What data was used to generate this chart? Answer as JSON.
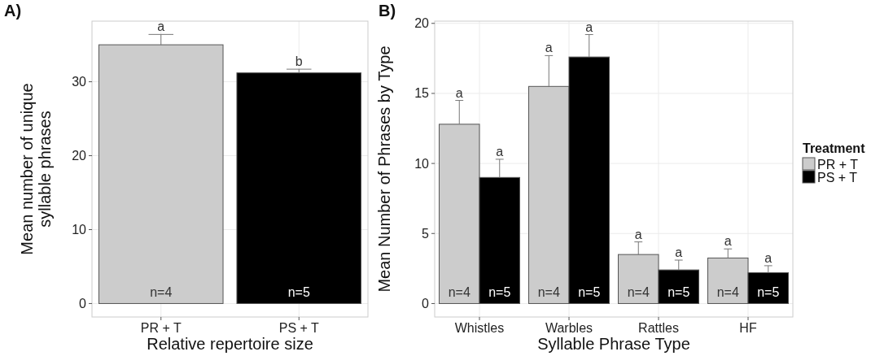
{
  "chart_data": [
    {
      "type": "bar",
      "title": "A)",
      "xlabel": "Relative repertoire size",
      "ylabel": "Mean number of unique\nsyllable phrases",
      "categories": [
        "PR + T",
        "PS + T"
      ],
      "values": [
        35,
        31.2
      ],
      "colors": [
        "#cccccc",
        "#000000"
      ],
      "errors": [
        [
          35,
          36.4
        ],
        [
          31.2,
          31.7
        ]
      ],
      "ylim": [
        -1.82,
        38.2
      ],
      "yticks": [
        0,
        10,
        20,
        30
      ],
      "grid": true,
      "legend": false,
      "annotations": [
        "a",
        "b",
        "n=4",
        "n=5"
      ]
    },
    {
      "type": "bar",
      "title": "B)",
      "xlabel": "Syllable Phrase Type",
      "ylabel": "Mean Number of Phrases by Type",
      "legend_title": "Treatment",
      "categories": [
        "Whistles",
        "Warbles",
        "Rattles",
        "HF"
      ],
      "series": [
        {
          "name": "PR + T",
          "color": "#cccccc",
          "values": [
            12.8,
            15.5,
            3.5,
            3.25
          ],
          "errors": [
            [
              12.8,
              14.5
            ],
            [
              15.5,
              17.7
            ],
            [
              3.5,
              4.4
            ],
            [
              3.25,
              3.9
            ]
          ]
        },
        {
          "name": "PS + T",
          "color": "#000000",
          "values": [
            9.0,
            17.6,
            2.4,
            2.2
          ],
          "errors": [
            [
              9.0,
              10.3
            ],
            [
              17.6,
              19.2
            ],
            [
              2.4,
              3.1
            ],
            [
              2.2,
              2.7
            ]
          ]
        }
      ],
      "ylim": [
        -0.96,
        20.16
      ],
      "yticks": [
        0,
        5,
        10,
        15,
        20
      ],
      "grid": true,
      "legend": "right",
      "annotations": [
        "a",
        "a",
        "a",
        "a",
        "a",
        "a",
        "a",
        "a",
        "n=4",
        "n=5",
        "n=4",
        "n=5",
        "n=4",
        "n=5",
        "n=4",
        "n=5"
      ]
    }
  ]
}
